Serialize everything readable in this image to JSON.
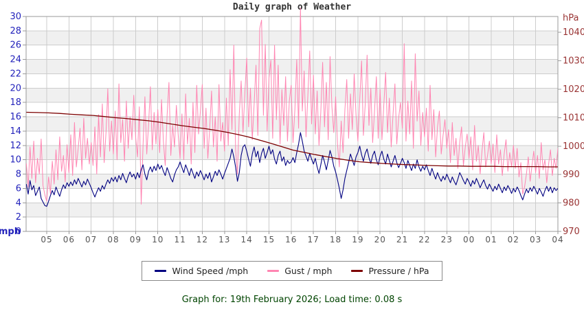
{
  "footer": {
    "text": "Graph for: 19th February 2026; Load time: 0.08 s"
  },
  "chart_data": {
    "type": "line",
    "title": "Daily graph of Weather",
    "x_axis": {
      "tick_labels": [
        "05",
        "06",
        "07",
        "08",
        "09",
        "10",
        "11",
        "12",
        "13",
        "14",
        "15",
        "16",
        "17",
        "18",
        "19",
        "20",
        "21",
        "22",
        "23",
        "00",
        "01",
        "02",
        "03",
        "04"
      ],
      "first_tick_hour": 5,
      "start_hour": 4.083,
      "end_hour": 28.083,
      "label_color": "#555555"
    },
    "left_axis": {
      "unit": "mph",
      "min": 0,
      "max": 30,
      "tick_step": 2,
      "color": "#2222bb"
    },
    "right_axis": {
      "unit": "hPa",
      "min": 970,
      "max": 1045.6,
      "tick_min": 970,
      "tick_max": 1040,
      "tick_step": 10,
      "color": "#993333"
    },
    "style": {
      "band_color": "#f0f0f0",
      "grid_color": "#cccccc",
      "border_color": "#999999",
      "tick_color": "#999999"
    },
    "legend_position": "bottom",
    "series": [
      {
        "name": "Wind Speed /mph",
        "axis": "left",
        "color": "#000080",
        "width": 1.1,
        "interval_minutes": 5,
        "values": [
          6.6,
          5.2,
          7.1,
          5.8,
          6.4,
          5.0,
          5.6,
          6.2,
          4.6,
          4.1,
          3.6,
          3.5,
          4.2,
          5.0,
          5.7,
          5.1,
          6.2,
          5.5,
          4.9,
          5.8,
          6.5,
          6.0,
          6.8,
          6.3,
          6.9,
          6.4,
          7.2,
          6.6,
          7.4,
          6.8,
          6.2,
          7.0,
          6.5,
          7.3,
          6.7,
          6.1,
          5.4,
          4.8,
          5.5,
          6.1,
          5.6,
          6.4,
          5.9,
          6.6,
          7.2,
          6.7,
          7.5,
          7.0,
          7.6,
          6.9,
          7.8,
          7.2,
          8.1,
          7.4,
          6.8,
          7.7,
          8.3,
          7.6,
          8.0,
          7.3,
          8.2,
          7.5,
          8.6,
          9.3,
          8.0,
          7.2,
          8.4,
          9.0,
          8.3,
          9.1,
          8.5,
          9.4,
          8.7,
          9.2,
          8.4,
          7.8,
          8.9,
          8.2,
          7.4,
          6.9,
          7.9,
          8.6,
          9.0,
          9.7,
          8.9,
          8.2,
          9.3,
          8.6,
          7.8,
          8.8,
          8.1,
          7.4,
          8.3,
          7.7,
          8.5,
          7.9,
          7.2,
          8.0,
          7.4,
          8.2,
          6.9,
          7.6,
          8.4,
          7.8,
          8.6,
          8.0,
          7.3,
          8.1,
          8.8,
          9.5,
          10.2,
          11.5,
          10.4,
          9.0,
          7.0,
          8.2,
          10.6,
          11.8,
          12.1,
          11.2,
          10.1,
          9.1,
          10.8,
          11.8,
          10.4,
          11.2,
          9.6,
          10.9,
          11.6,
          10.2,
          11.0,
          11.9,
          10.8,
          11.4,
          10.1,
          9.4,
          10.6,
          11.2,
          9.8,
          10.4,
          9.2,
          9.9,
          9.5,
          9.7,
          10.3,
          9.6,
          11.0,
          12.2,
          13.8,
          12.6,
          11.2,
          10.5,
          9.8,
          10.9,
          10.1,
          9.4,
          10.2,
          9.0,
          8.1,
          9.3,
          10.6,
          9.7,
          8.6,
          9.9,
          11.3,
          10.4,
          9.1,
          8.3,
          7.2,
          6.0,
          4.6,
          5.8,
          7.4,
          8.5,
          9.6,
          10.8,
          10.0,
          9.2,
          10.4,
          11.0,
          11.9,
          10.7,
          9.8,
          10.9,
          11.5,
          10.3,
          9.5,
          10.6,
          11.2,
          10.0,
          9.3,
          10.5,
          11.2,
          10.1,
          9.4,
          10.8,
          9.9,
          9.0,
          9.8,
          10.6,
          9.6,
          8.9,
          9.5,
          10.2,
          9.6,
          8.8,
          9.9,
          9.2,
          8.5,
          9.4,
          8.8,
          10.0,
          9.0,
          8.4,
          9.1,
          8.6,
          9.3,
          8.5,
          7.8,
          8.8,
          8.0,
          7.3,
          8.2,
          7.5,
          7.0,
          7.7,
          7.2,
          8.0,
          7.4,
          6.8,
          7.6,
          7.0,
          6.5,
          7.3,
          8.2,
          7.7,
          7.1,
          6.6,
          7.4,
          6.9,
          6.3,
          7.1,
          6.6,
          7.4,
          6.8,
          6.1,
          6.7,
          7.2,
          6.4,
          5.9,
          6.6,
          6.1,
          5.6,
          6.3,
          5.8,
          6.6,
          6.0,
          5.4,
          6.2,
          5.7,
          6.4,
          5.9,
          5.3,
          6.0,
          5.5,
          6.2,
          5.7,
          5.0,
          4.4,
          5.2,
          5.9,
          5.4,
          6.1,
          5.6,
          6.3,
          5.8,
          5.2,
          6.0,
          5.5,
          4.9,
          5.7,
          6.3,
          5.6,
          6.2,
          5.4,
          6.1,
          5.7,
          6.0,
          6.2
        ]
      },
      {
        "name": "Gust / mph",
        "axis": "left",
        "color": "#ff85b2",
        "width": 1.0,
        "interval_minutes": 5,
        "values": [
          9.5,
          6.2,
          11.8,
          7.4,
          12.6,
          6.8,
          10.2,
          8.0,
          12.9,
          6.4,
          5.1,
          4.2,
          7.6,
          5.3,
          9.8,
          6.6,
          11.4,
          7.2,
          13.2,
          8.4,
          10.6,
          6.9,
          12.1,
          8.2,
          13.5,
          7.8,
          15.2,
          9.0,
          11.6,
          14.4,
          8.6,
          15.8,
          10.2,
          13.0,
          9.4,
          12.4,
          9.2,
          14.6,
          8.0,
          16.3,
          10.4,
          17.8,
          9.6,
          13.8,
          19.9,
          11.2,
          15.4,
          10.8,
          16.8,
          10.0,
          20.6,
          12.4,
          15.6,
          9.8,
          18.2,
          11.6,
          16.0,
          12.8,
          19.0,
          13.2,
          10.4,
          17.4,
          3.8,
          12.0,
          18.8,
          10.8,
          15.0,
          20.2,
          11.4,
          16.6,
          12.2,
          17.0,
          11.0,
          18.4,
          12.6,
          9.2,
          16.2,
          20.8,
          10.6,
          14.8,
          11.8,
          17.6,
          13.4,
          10.2,
          16.4,
          10.0,
          19.2,
          12.2,
          15.8,
          9.4,
          18.0,
          11.0,
          20.4,
          13.6,
          16.8,
          20.5,
          11.6,
          17.2,
          10.2,
          14.4,
          19.6,
          11.8,
          16.0,
          9.8,
          20.5,
          12.6,
          15.2,
          11.2,
          18.6,
          12.0,
          22.6,
          14.2,
          26.0,
          11.4,
          8.0,
          16.4,
          21.0,
          13.8,
          19.4,
          24.2,
          14.6,
          20.0,
          12.8,
          17.8,
          23.2,
          13.4,
          28.3,
          29.5,
          16.2,
          26.1,
          14.0,
          21.4,
          23.9,
          13.0,
          26.0,
          15.6,
          23.2,
          12.2,
          19.8,
          14.8,
          21.6,
          12.6,
          18.2,
          20.4,
          12.4,
          17.0,
          24.0,
          14.4,
          31.2,
          16.8,
          22.4,
          13.2,
          19.0,
          25.2,
          15.0,
          21.8,
          13.6,
          19.6,
          12.0,
          16.6,
          23.6,
          14.6,
          20.8,
          12.8,
          24.4,
          17.4,
          13.8,
          18.8,
          12.2,
          9.0,
          15.4,
          11.0,
          17.0,
          21.2,
          13.0,
          19.2,
          14.2,
          22.0,
          16.2,
          12.6,
          18.4,
          23.8,
          13.4,
          17.8,
          24.6,
          14.8,
          20.0,
          12.4,
          16.8,
          21.6,
          13.0,
          19.8,
          12.8,
          17.6,
          22.2,
          13.8,
          18.6,
          11.8,
          16.4,
          20.6,
          12.2,
          15.8,
          18.0,
          14.4,
          26.2,
          12.6,
          18.2,
          13.6,
          21.0,
          11.6,
          24.8,
          15.4,
          19.6,
          12.0,
          16.6,
          13.2,
          17.2,
          11.2,
          20.4,
          12.8,
          17.0,
          10.4,
          14.6,
          16.8,
          10.8,
          13.4,
          15.6,
          11.6,
          14.2,
          9.6,
          15.2,
          10.6,
          13.0,
          8.8,
          12.4,
          14.6,
          9.2,
          11.8,
          13.6,
          10.2,
          13.2,
          8.6,
          14.8,
          9.8,
          12.0,
          8.0,
          11.2,
          13.8,
          9.0,
          10.6,
          12.6,
          9.4,
          12.2,
          8.2,
          13.5,
          9.4,
          11.4,
          7.8,
          10.8,
          12.8,
          8.4,
          11.0,
          9.0,
          12.0,
          8.8,
          11.6,
          7.6,
          9.6,
          5.2,
          6.2,
          8.0,
          10.4,
          7.0,
          9.2,
          11.2,
          8.2,
          10.6,
          7.4,
          12.4,
          8.6,
          10.0,
          6.8,
          9.4,
          11.4,
          7.8,
          10.2,
          8.8,
          11.6,
          9.8
        ]
      },
      {
        "name": "Pressure / hPa",
        "axis": "right",
        "color": "#7c0000",
        "width": 1.3,
        "interval_minutes": 30,
        "values": [
          1011.9,
          1011.8,
          1011.7,
          1011.5,
          1011.2,
          1011.0,
          1010.8,
          1010.4,
          1010.0,
          1009.7,
          1009.3,
          1008.9,
          1008.4,
          1007.8,
          1007.2,
          1006.7,
          1006.2,
          1005.6,
          1004.9,
          1004.1,
          1003.2,
          1002.1,
          1001.0,
          999.8,
          998.6,
          997.8,
          997.0,
          996.3,
          995.6,
          995.0,
          994.5,
          994.2,
          993.9,
          993.7,
          993.5,
          993.4,
          993.2,
          993.1,
          993.0,
          993.0,
          992.9,
          992.9,
          992.9,
          992.8,
          992.8,
          992.8,
          992.8,
          992.7,
          992.7
        ]
      }
    ]
  }
}
